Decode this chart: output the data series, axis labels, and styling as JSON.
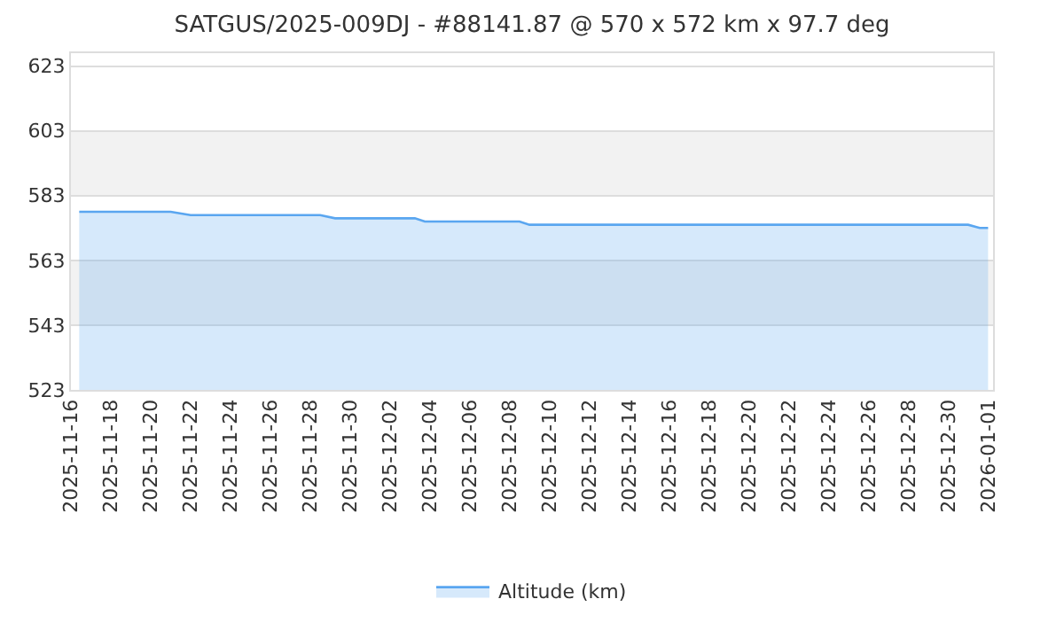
{
  "chart_data": {
    "type": "area",
    "title": "SATGUS/2025-009DJ - #88141.87 @ 570 x 572 km x 97.7 deg",
    "series": [
      {
        "name": "Altitude (km)",
        "color": "#5aa6f0",
        "x": [
          "2025-11-16T10:00",
          "2025-11-21",
          "2025-11-22",
          "2025-11-28T12:00",
          "2025-11-29T06:00",
          "2025-12-03T06:00",
          "2025-12-03T18:00",
          "2025-12-08T12:00",
          "2025-12-09",
          "2025-12-31",
          "2025-12-31T14:00",
          "2026-01-01"
        ],
        "values": [
          578,
          578,
          577,
          577,
          576,
          576,
          575,
          575,
          574,
          574,
          573,
          573
        ]
      }
    ],
    "xlim": [
      "2025-11-16",
      "2026-01-01T06:00"
    ],
    "xticks": [
      "2025-11-16",
      "2025-11-18",
      "2025-11-20",
      "2025-11-22",
      "2025-11-24",
      "2025-11-26",
      "2025-11-28",
      "2025-11-30",
      "2025-12-02",
      "2025-12-04",
      "2025-12-06",
      "2025-12-08",
      "2025-12-10",
      "2025-12-12",
      "2025-12-14",
      "2025-12-16",
      "2025-12-18",
      "2025-12-20",
      "2025-12-22",
      "2025-12-24",
      "2025-12-26",
      "2025-12-28",
      "2025-12-30",
      "2026-01-01"
    ],
    "ylim": [
      523,
      627
    ],
    "yticks": [
      523,
      543,
      563,
      583,
      603,
      623
    ],
    "bands": [
      {
        "axis": "y",
        "from": 543,
        "to": 563,
        "color": "#f2f2f2"
      },
      {
        "axis": "y",
        "from": 583,
        "to": 603,
        "color": "#f2f2f2"
      }
    ],
    "grid": "y",
    "legend": "bottom"
  }
}
